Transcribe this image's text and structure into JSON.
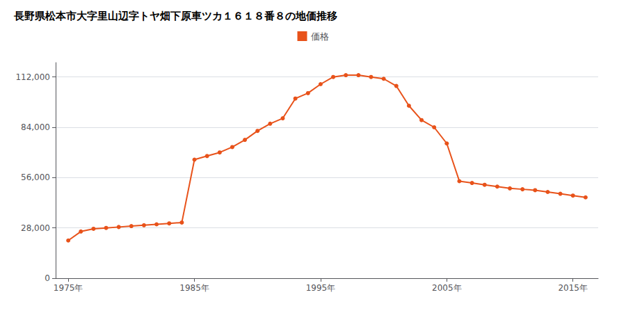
{
  "chart_data": {
    "type": "line",
    "title": "長野県松本市大字里山辺字トヤ畑下原車ツカ１６１８番８の地価推移",
    "x": [
      1975,
      1976,
      1977,
      1978,
      1979,
      1980,
      1981,
      1982,
      1983,
      1984,
      1985,
      1986,
      1987,
      1988,
      1989,
      1990,
      1991,
      1992,
      1993,
      1994,
      1995,
      1996,
      1997,
      1998,
      1999,
      2000,
      2001,
      2002,
      2003,
      2004,
      2005,
      2006,
      2007,
      2008,
      2009,
      2010,
      2011,
      2012,
      2013,
      2014,
      2015,
      2016
    ],
    "series": [
      {
        "name": "価格",
        "color": "#e8521a",
        "marker": "circle",
        "values": [
          21000,
          26000,
          27500,
          28000,
          28500,
          29000,
          29500,
          30000,
          30500,
          31000,
          66000,
          68000,
          70000,
          73000,
          77000,
          82000,
          86000,
          89000,
          100000,
          103000,
          108000,
          112000,
          113000,
          113000,
          112000,
          111000,
          107000,
          96000,
          88000,
          84000,
          75000,
          54000,
          53000,
          52000,
          51000,
          50000,
          49500,
          49000,
          48000,
          47000,
          46000,
          45000
        ]
      }
    ],
    "xlim": [
      1974,
      2017
    ],
    "xticks": [
      {
        "value": 1975,
        "label": "1975年"
      },
      {
        "value": 1985,
        "label": "1985年"
      },
      {
        "value": 1995,
        "label": "1995年"
      },
      {
        "value": 2005,
        "label": "2005年"
      },
      {
        "value": 2015,
        "label": "2015年"
      }
    ],
    "ylim": [
      0,
      120000
    ],
    "yticks": [
      0,
      {
        "value": 28000,
        "label": "28,000"
      },
      {
        "value": 56000,
        "label": "56,000"
      },
      {
        "value": 84000,
        "label": "84,000"
      },
      {
        "value": 112000,
        "label": "112,000"
      }
    ],
    "grid": "y",
    "legend": "top"
  }
}
